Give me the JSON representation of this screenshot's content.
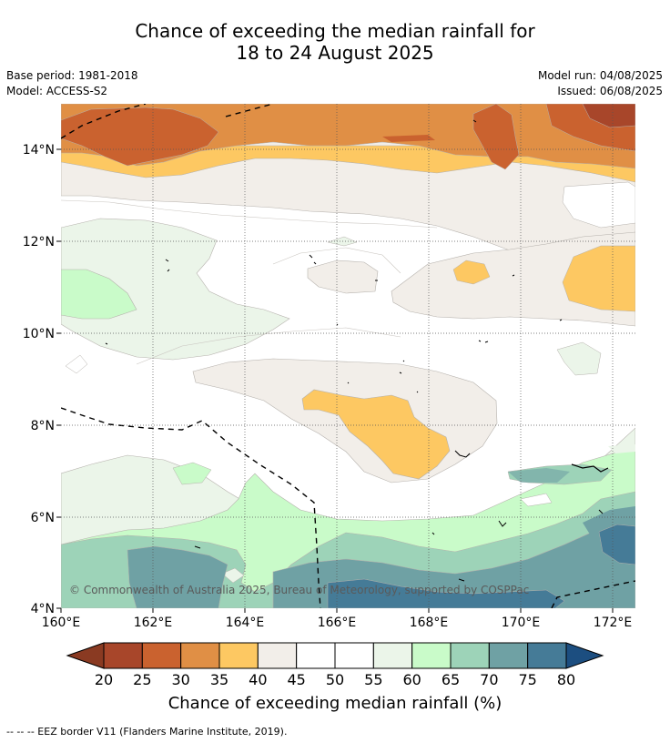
{
  "title_line1": "Chance of exceeding the median rainfall for",
  "title_line2": "18 to 24 August 2025",
  "base_period": "Base period: 1981-2018",
  "model": "Model: ACCESS-S2",
  "model_run": "Model run: 04/08/2025",
  "issued": "Issued: 06/08/2025",
  "lat_labels": [
    "14°N",
    "12°N",
    "10°N",
    "8°N",
    "6°N",
    "4°N"
  ],
  "lon_labels": [
    "160°E",
    "162°E",
    "164°E",
    "166°E",
    "168°E",
    "170°E",
    "172°E"
  ],
  "colorbar": {
    "ticks": [
      "20",
      "25",
      "30",
      "35",
      "40",
      "45",
      "50",
      "55",
      "60",
      "65",
      "70",
      "75",
      "80"
    ],
    "colors": [
      "#a8462a",
      "#ca622f",
      "#e08f45",
      "#fdc862",
      "#f2eee9",
      "#ffffff",
      "#ffffff",
      "#ebf5e9",
      "#c9fbc9",
      "#9dd3b8",
      "#6fa1a4",
      "#457b97"
    ],
    "low_color": "#8a3a22",
    "high_color": "#1c4e80",
    "title": "Chance of exceeding median rainfall (%)"
  },
  "copyright": "© Commonwealth of Australia 2025, Bureau of Meteorology, supported by COSPPac",
  "footer": "-- -- -- EEZ border V11 (Flanders Marine Institute, 2019)."
}
